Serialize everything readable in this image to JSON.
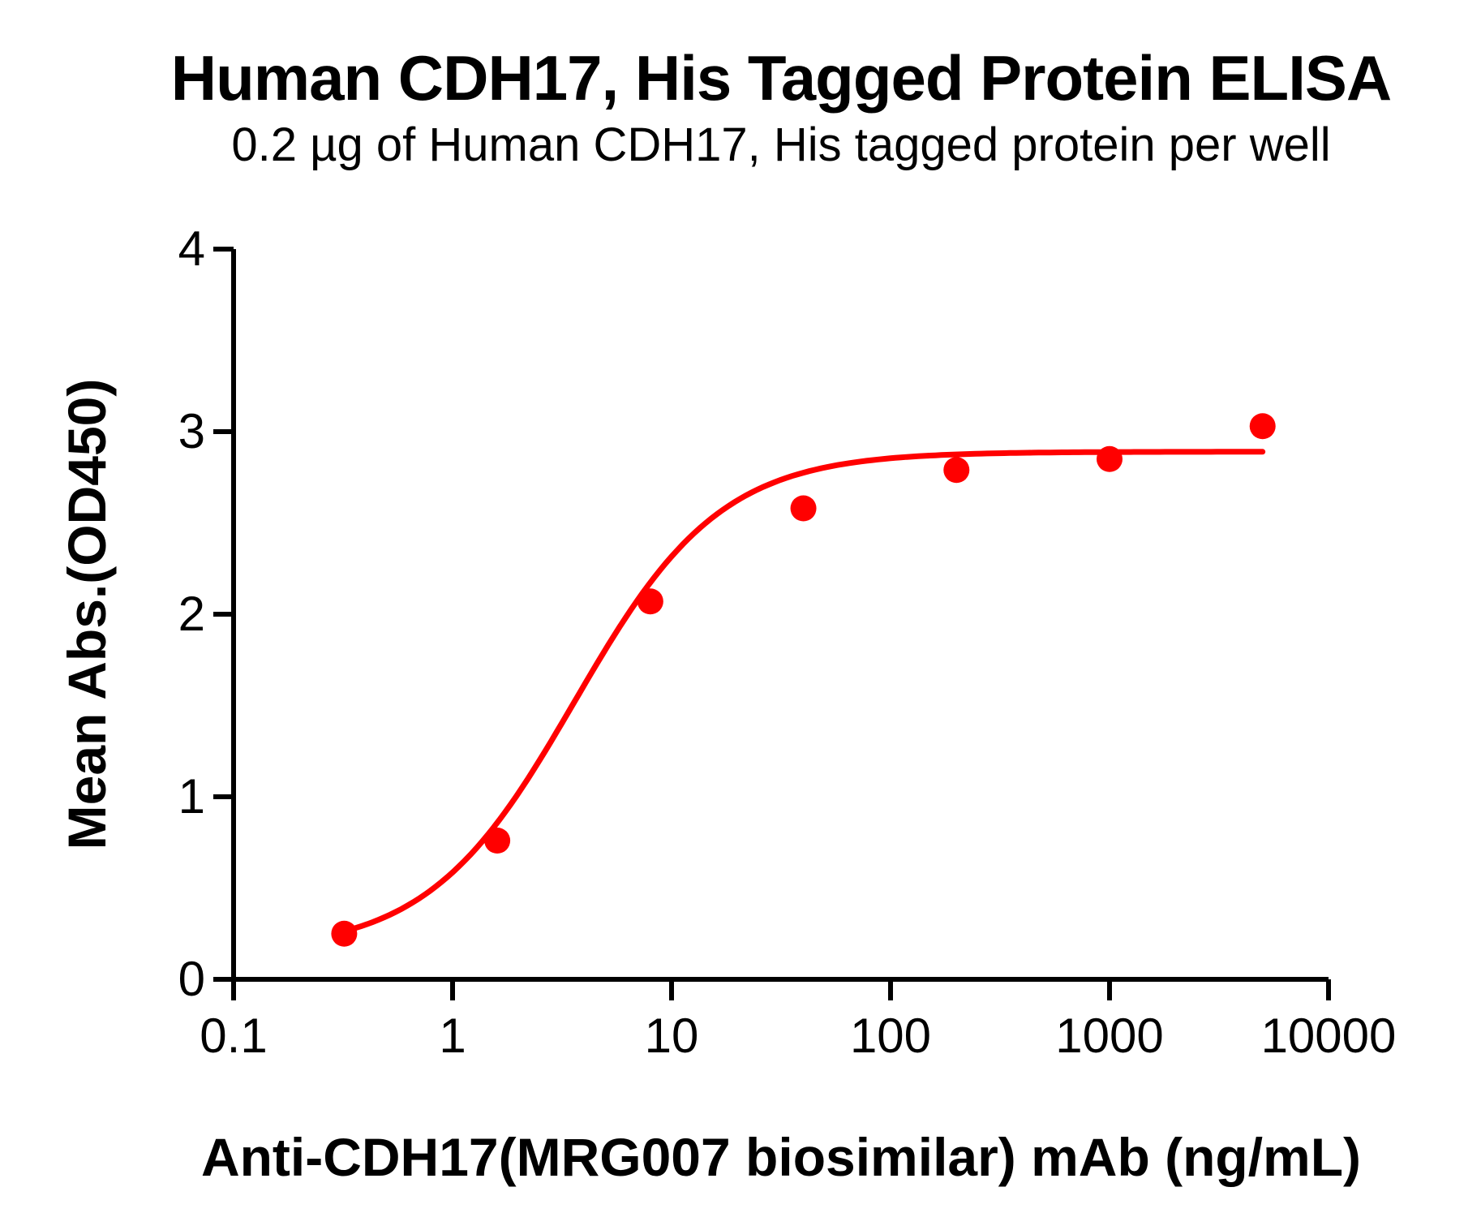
{
  "chart_data": {
    "type": "scatter",
    "title": "Human CDH17, His Tagged Protein ELISA",
    "subtitle": "0.2 µg of Human CDH17, His tagged protein per well",
    "xlabel": "Anti-CDH17(MRG007 biosimilar) mAb (ng/mL)",
    "ylabel": "Mean Abs.(OD450)",
    "x_scale": "log10",
    "xlim": [
      0.1,
      10000
    ],
    "ylim": [
      0,
      4
    ],
    "x_ticks": [
      0.1,
      1,
      10,
      100,
      1000,
      10000
    ],
    "x_tick_labels": [
      "0.1",
      "1",
      "10",
      "100",
      "1000",
      "10000"
    ],
    "y_ticks": [
      0,
      1,
      2,
      3,
      4
    ],
    "y_tick_labels": [
      "0",
      "1",
      "2",
      "3",
      "4"
    ],
    "grid": false,
    "legend": false,
    "series": [
      {
        "name": "Anti-CDH17(MRG007 biosimilar) mAb",
        "marker": "circle",
        "color": "#FF0000",
        "x": [
          0.32,
          1.6,
          8,
          40,
          200,
          1000,
          5000
        ],
        "y": [
          0.25,
          0.76,
          2.07,
          2.58,
          2.79,
          2.85,
          3.03
        ]
      }
    ],
    "fit_curve": {
      "model": "4PL",
      "bottom": 0.15,
      "top": 2.89,
      "ec50": 3.6,
      "hillslope": 1.3,
      "x_range": [
        0.32,
        5000
      ],
      "color": "#FF0000"
    },
    "colors": {
      "axis": "#000000",
      "background": "#FFFFFF",
      "series": "#FF0000"
    }
  }
}
